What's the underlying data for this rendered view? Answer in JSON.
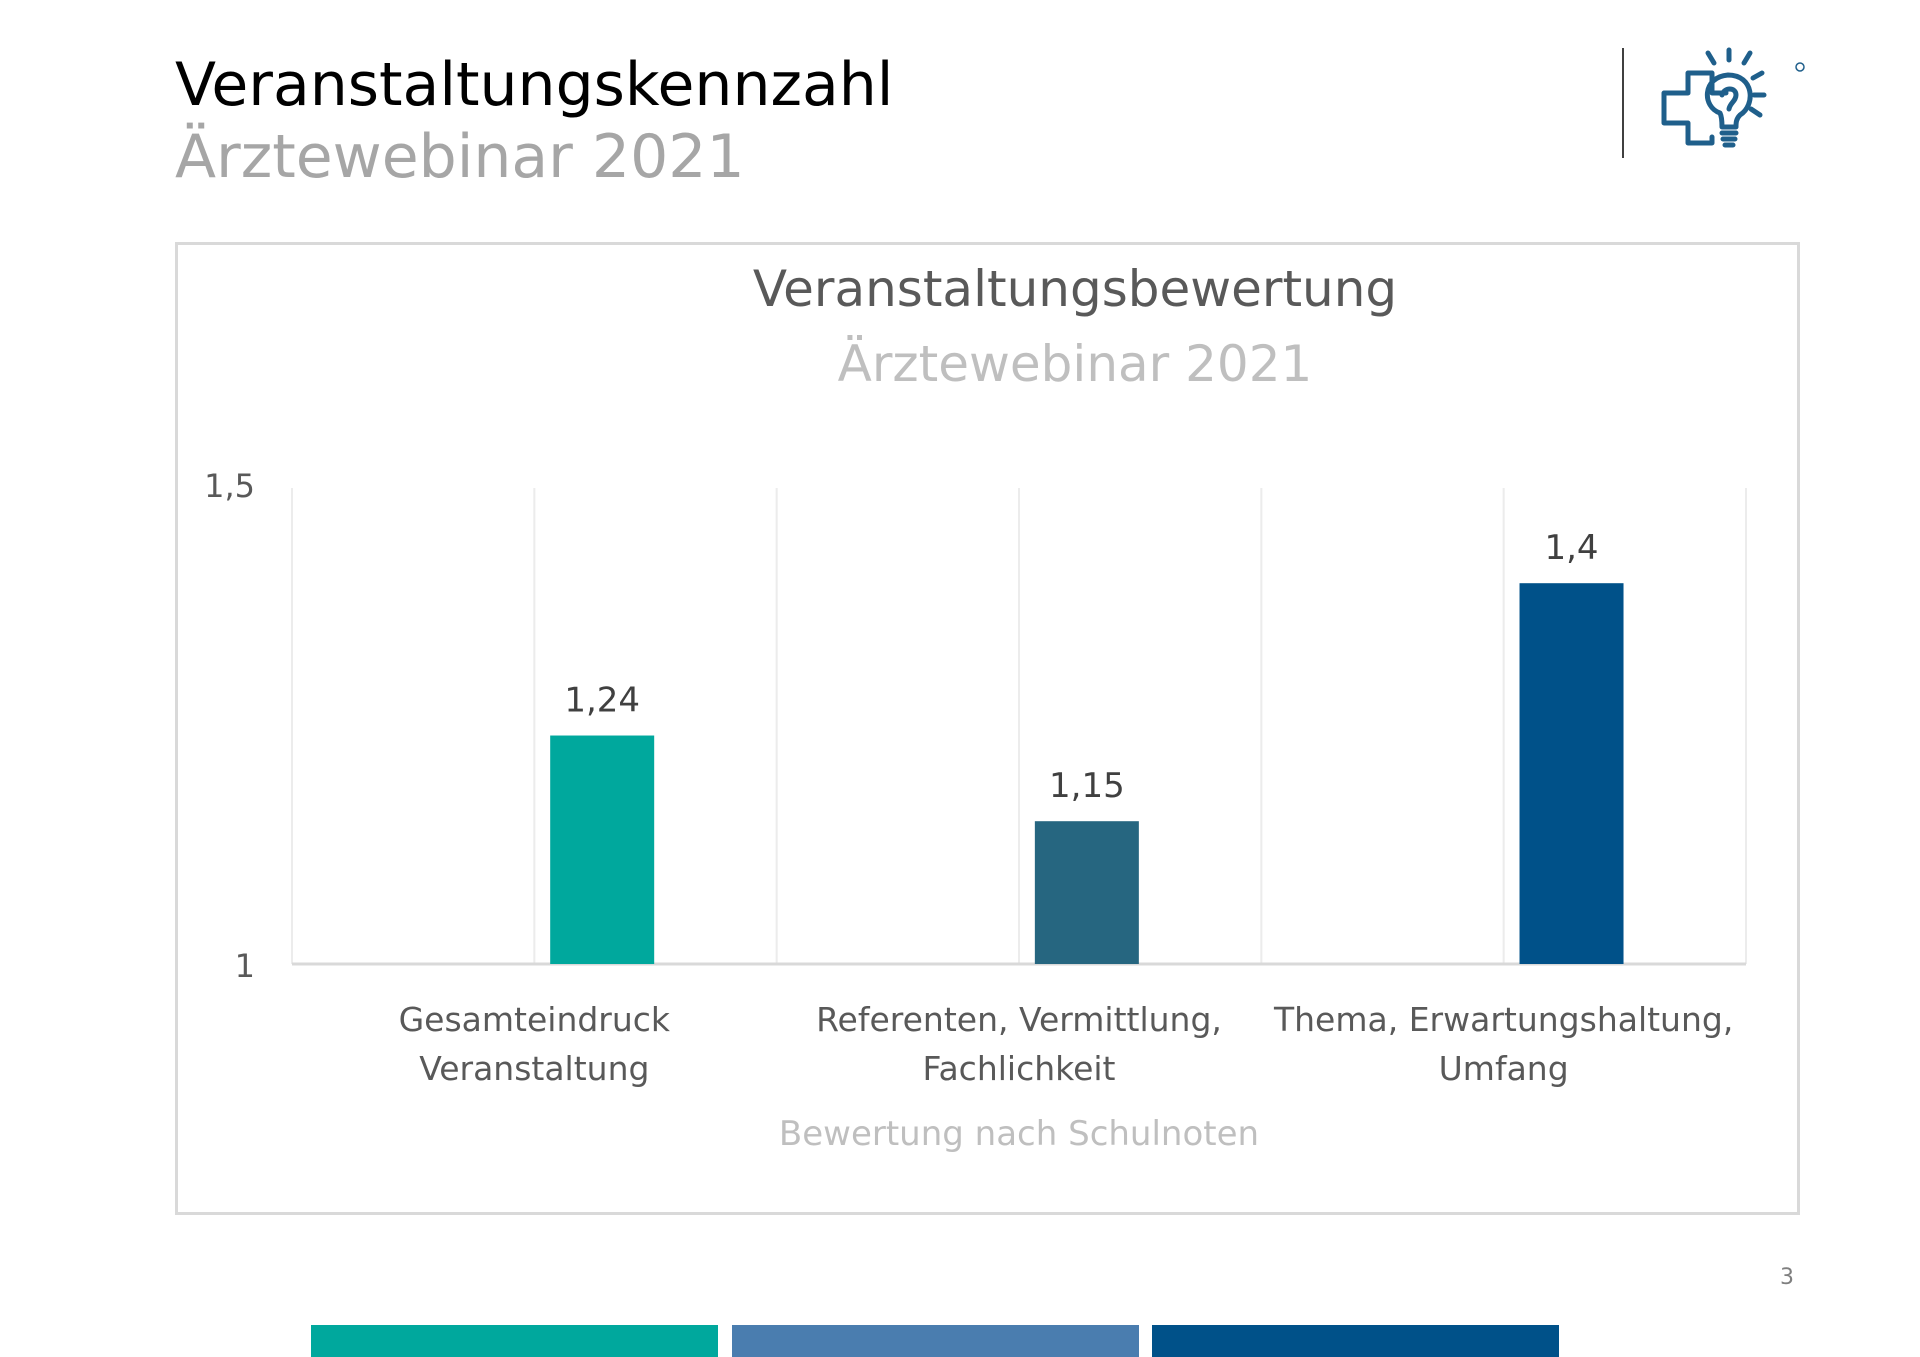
{
  "slide": {
    "title": "Veranstaltungskennzahl",
    "subtitle": "Ärztewebinar 2021",
    "page_number": "3"
  },
  "logo": {
    "icon": "cross-lightbulb-logo",
    "color": "#1f5f8b"
  },
  "footer": {
    "colors": [
      "#00a89d",
      "#4a7daf",
      "#005189"
    ]
  },
  "chart_data": {
    "type": "bar",
    "title": "Veranstaltungsbewertung",
    "subtitle": "Ärztewebinar 2021",
    "xlabel": "Bewertung nach Schulnoten",
    "ylabel": "",
    "ylim": [
      1,
      1.5
    ],
    "yticks": [
      "1",
      "1,5"
    ],
    "grid": "vertical",
    "categories": [
      [
        "Gesamteindruck",
        "Veranstaltung"
      ],
      [
        "Referenten, Vermittlung,",
        "Fachlichkeit"
      ],
      [
        "Thema, Erwartungshaltung,",
        "Umfang"
      ]
    ],
    "values": [
      1.24,
      1.15,
      1.4
    ],
    "data_labels": [
      "1,24",
      "1,15",
      "1,4"
    ],
    "colors": [
      "#00a89d",
      "#266680",
      "#005189"
    ]
  }
}
